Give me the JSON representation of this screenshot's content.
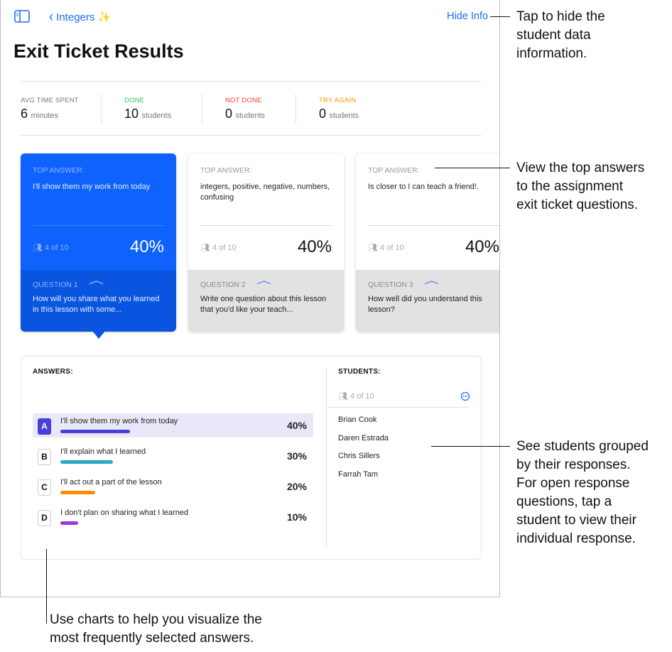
{
  "header": {
    "back_label": "Integers ✨",
    "hide_info": "Hide Info",
    "title": "Exit Ticket Results"
  },
  "stats": [
    {
      "label": "AVG TIME SPENT",
      "value": "6",
      "unit": "minutes",
      "color": "#777777"
    },
    {
      "label": "DONE",
      "value": "10",
      "unit": "students",
      "color": "#34c759"
    },
    {
      "label": "NOT DONE",
      "value": "0",
      "unit": "students",
      "color": "#ff3b30"
    },
    {
      "label": "TRY AGAIN",
      "value": "0",
      "unit": "students",
      "color": "#ff9500"
    }
  ],
  "cards": [
    {
      "top_label": "TOP ANSWER:",
      "answer": "I'll show them my work from today",
      "count": "4 of 10",
      "percent": "40%",
      "question_label": "QUESTION 1",
      "question": "How will you share what you learned in this lesson with some...",
      "selected": true
    },
    {
      "top_label": "TOP ANSWER:",
      "answer": "integers, positive, negative, numbers, confusing",
      "count": "4 of 10",
      "percent": "40%",
      "question_label": "QUESTION 2",
      "question": "Write one question about this lesson that you'd like your teach...",
      "selected": false
    },
    {
      "top_label": "TOP ANSWER:",
      "answer": "Is closer to I can teach a friend!.",
      "count": "4 of 10",
      "percent": "40%",
      "question_label": "QUESTION 3",
      "question": "How well did you understand this lesson?",
      "selected": false
    }
  ],
  "answers": {
    "title": "ANSWERS:",
    "items": [
      {
        "letter": "A",
        "text": "I'll show them my work from today",
        "percent": "40%",
        "value": 40,
        "color": "#4a3fd6",
        "selected": true
      },
      {
        "letter": "B",
        "text": "I'll explain what I learned",
        "percent": "30%",
        "value": 30,
        "color": "#2aa9c0",
        "selected": false
      },
      {
        "letter": "C",
        "text": "I'll act out a part of the lesson",
        "percent": "20%",
        "value": 20,
        "color": "#ff8a00",
        "selected": false
      },
      {
        "letter": "D",
        "text": "I don't plan on sharing what I learned",
        "percent": "10%",
        "value": 10,
        "color": "#a036d6",
        "selected": false
      }
    ]
  },
  "students": {
    "title": "STUDENTS:",
    "count": "4 of 10",
    "names": [
      "Brian Cook",
      "Daren Estrada",
      "Chris Sillers",
      "Farrah Tam"
    ]
  },
  "callouts": {
    "hide_info": [
      "Tap to hide the",
      "student data",
      "information."
    ],
    "top_answers": [
      "View the top answers",
      "to the assignment",
      "exit ticket questions."
    ],
    "students": [
      "See students grouped",
      "by their responses.",
      "For open response",
      "questions, tap a",
      "student to view their",
      "individual response."
    ],
    "charts": [
      "Use charts to help you visualize the",
      "most frequently selected answers."
    ]
  }
}
